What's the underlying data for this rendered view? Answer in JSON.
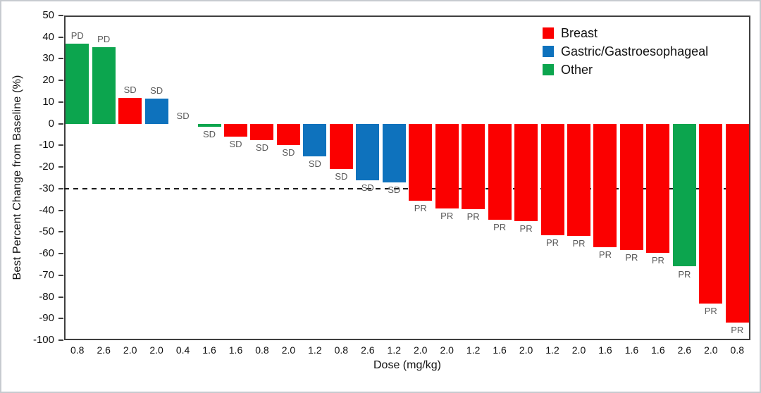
{
  "chart_data": {
    "type": "bar",
    "title": "",
    "xlabel": "Dose (mg/kg)",
    "ylabel": "Best Percent Change from Baseline (%)",
    "ylim": [
      -100,
      50
    ],
    "ytick_step": 10,
    "grid": false,
    "reference_line_y": -30,
    "legend_position": "top-right-inside",
    "legend": [
      {
        "label": "Breast",
        "color": "#fb0000"
      },
      {
        "label": "Gastric/Gastroesophageal",
        "color": "#0e72bd"
      },
      {
        "label": "Other",
        "color": "#0ca54e"
      }
    ],
    "bars": [
      {
        "dose": "0.8",
        "value": 37,
        "category": "Other",
        "response": "PD"
      },
      {
        "dose": "2.6",
        "value": 35.5,
        "category": "Other",
        "response": "PD"
      },
      {
        "dose": "2.0",
        "value": 12,
        "category": "Breast",
        "response": "SD"
      },
      {
        "dose": "2.0",
        "value": 11.5,
        "category": "Gastric/Gastroesophageal",
        "response": "SD"
      },
      {
        "dose": "0.4",
        "value": 0,
        "category": "Breast",
        "response": "SD"
      },
      {
        "dose": "1.6",
        "value": -1.5,
        "category": "Other",
        "response": "SD"
      },
      {
        "dose": "1.6",
        "value": -6,
        "category": "Breast",
        "response": "SD"
      },
      {
        "dose": "0.8",
        "value": -7.5,
        "category": "Breast",
        "response": "SD"
      },
      {
        "dose": "2.0",
        "value": -10,
        "category": "Breast",
        "response": "SD"
      },
      {
        "dose": "1.2",
        "value": -15,
        "category": "Gastric/Gastroesophageal",
        "response": "SD"
      },
      {
        "dose": "0.8",
        "value": -21,
        "category": "Breast",
        "response": "SD"
      },
      {
        "dose": "2.6",
        "value": -26,
        "category": "Gastric/Gastroesophageal",
        "response": "SD"
      },
      {
        "dose": "1.2",
        "value": -27,
        "category": "Gastric/Gastroesophageal",
        "response": "SD"
      },
      {
        "dose": "2.0",
        "value": -35.5,
        "category": "Breast",
        "response": "PR"
      },
      {
        "dose": "2.0",
        "value": -39,
        "category": "Breast",
        "response": "PR"
      },
      {
        "dose": "1.2",
        "value": -39.5,
        "category": "Breast",
        "response": "PR"
      },
      {
        "dose": "1.6",
        "value": -44.5,
        "category": "Breast",
        "response": "PR"
      },
      {
        "dose": "2.0",
        "value": -45,
        "category": "Breast",
        "response": "PR"
      },
      {
        "dose": "1.2",
        "value": -51.5,
        "category": "Breast",
        "response": "PR"
      },
      {
        "dose": "2.0",
        "value": -52,
        "category": "Breast",
        "response": "PR"
      },
      {
        "dose": "1.6",
        "value": -57,
        "category": "Breast",
        "response": "PR"
      },
      {
        "dose": "1.6",
        "value": -58.5,
        "category": "Breast",
        "response": "PR"
      },
      {
        "dose": "1.6",
        "value": -59.5,
        "category": "Breast",
        "response": "PR"
      },
      {
        "dose": "2.6",
        "value": -66,
        "category": "Other",
        "response": "PR"
      },
      {
        "dose": "2.0",
        "value": -83,
        "category": "Breast",
        "response": "PR"
      },
      {
        "dose": "0.8",
        "value": -92,
        "category": "Breast",
        "response": "PR"
      }
    ]
  }
}
